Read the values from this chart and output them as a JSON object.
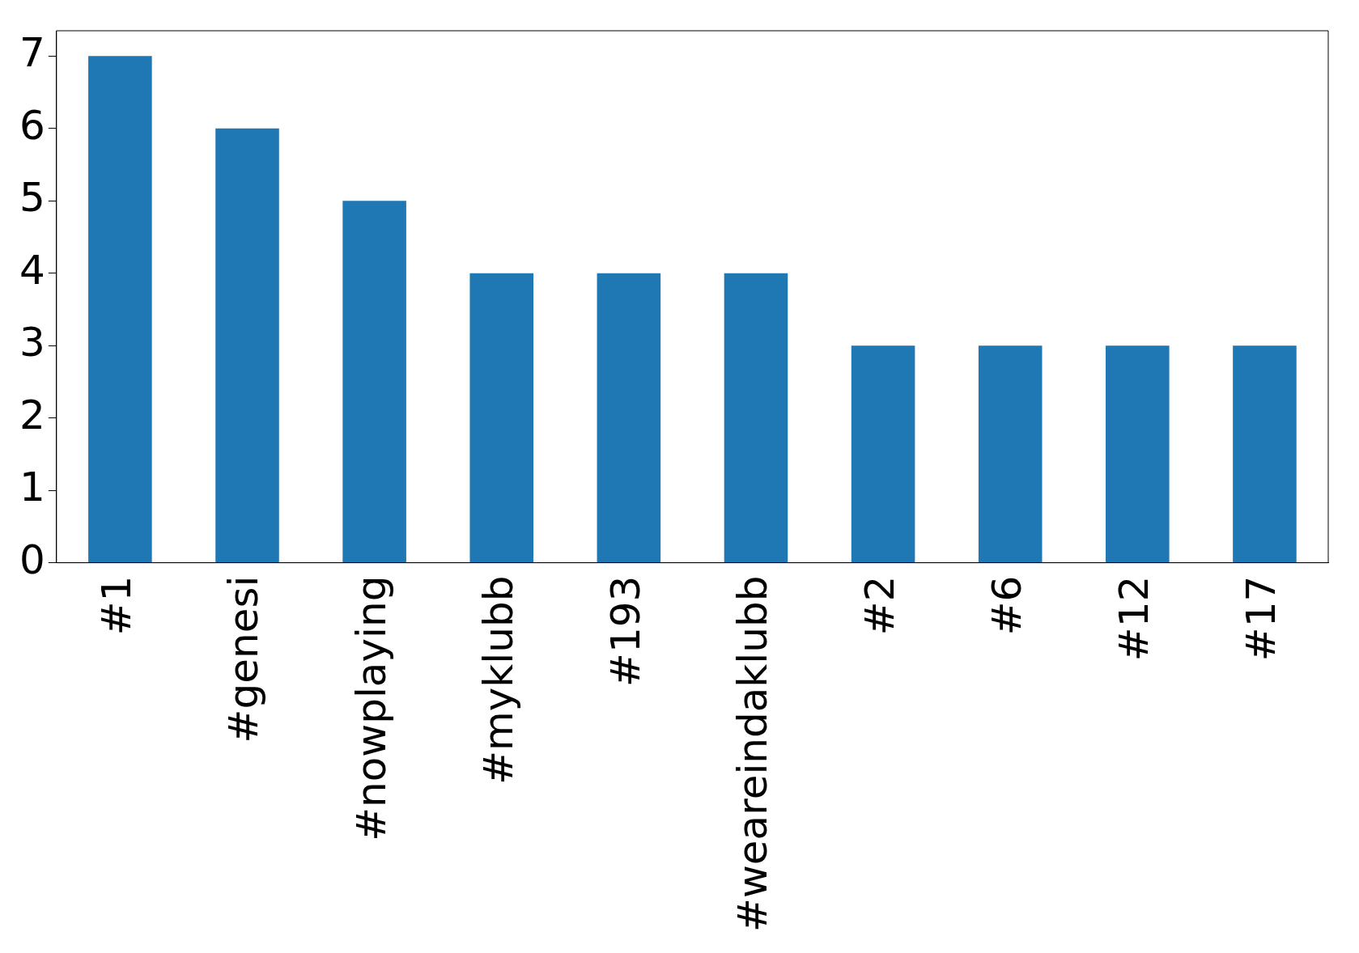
{
  "chart_data": {
    "type": "bar",
    "categories": [
      "#1",
      "#genesi",
      "#nowplaying",
      "#myklubb",
      "#193",
      "#weareindaklubb",
      "#2",
      "#6",
      "#12",
      "#17"
    ],
    "values": [
      7,
      6,
      5,
      4,
      4,
      4,
      3,
      3,
      3,
      3
    ],
    "color": "#1f77b4",
    "ylim": [
      0,
      7.35
    ],
    "yticks": [
      0,
      1,
      2,
      3,
      4,
      5,
      6,
      7
    ]
  }
}
